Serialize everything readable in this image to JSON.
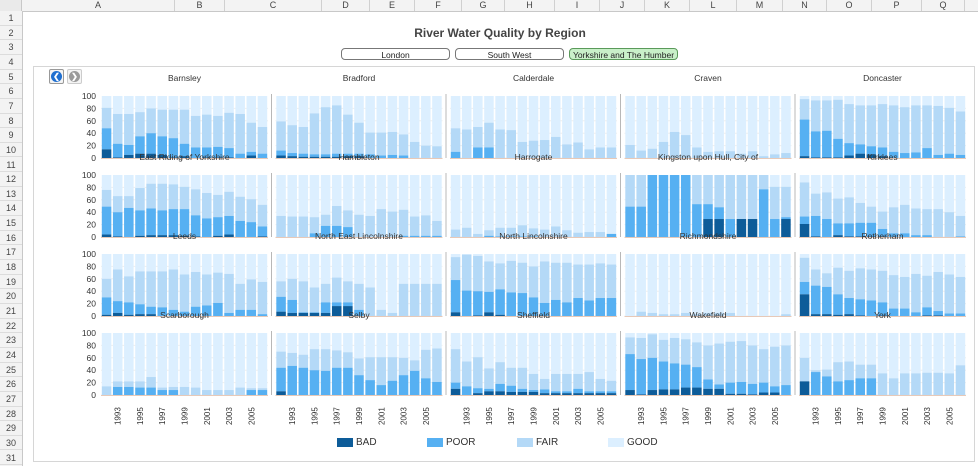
{
  "sheet": {
    "columns": [
      "A",
      "B",
      "C",
      "D",
      "E",
      "F",
      "G",
      "H",
      "I",
      "J",
      "K",
      "L",
      "M",
      "N",
      "O",
      "P",
      "Q"
    ],
    "rows": [
      1,
      2,
      3,
      4,
      5,
      6,
      7,
      8,
      9,
      10,
      11,
      12,
      13,
      14,
      15,
      16,
      17,
      18,
      19,
      20,
      21,
      22,
      23,
      24,
      25,
      26,
      27,
      28,
      29,
      30,
      31
    ]
  },
  "dashboard": {
    "title": "River Water Quality by Region",
    "region_buttons": [
      {
        "label": "London",
        "active": false
      },
      {
        "label": "South West",
        "active": false
      },
      {
        "label": "Yorkshire and The Humber",
        "active": true
      }
    ],
    "nav": {
      "back_icon": "arrow-left-circle-icon",
      "forward_icon": "arrow-right-circle-icon"
    }
  },
  "colors": {
    "BAD": "#0d5c99",
    "POOR": "#56b0f2",
    "FAIR": "#b4d9f7",
    "GOOD": "#dcefff"
  },
  "legend": [
    "BAD",
    "POOR",
    "FAIR",
    "GOOD"
  ],
  "chart_data": {
    "type": "bar",
    "stacked": true,
    "stack_order": [
      "BAD",
      "POOR",
      "FAIR",
      "GOOD"
    ],
    "value_encoding": "cumulative percent: bad = % BAD, bad_poor = % BAD+POOR, bad_poor_fair = % BAD+POOR+FAIR, GOOD = remainder to 100",
    "years": [
      1992,
      1993,
      1994,
      1995,
      1996,
      1997,
      1998,
      1999,
      2000,
      2001,
      2002,
      2003,
      2004,
      2005,
      2006
    ],
    "x_tick_labels": [
      "1993",
      "1995",
      "1997",
      "1999",
      "2001",
      "2003",
      "2005"
    ],
    "y_ticks": [
      "100",
      "80",
      "60",
      "40",
      "20",
      "0"
    ],
    "ylim": [
      0,
      100
    ],
    "panels": [
      {
        "name": "Barnsley",
        "bad": [
          14,
          1,
          5,
          7,
          7,
          5,
          1,
          3,
          0,
          1,
          1,
          1,
          0,
          4,
          0
        ],
        "bad_poor": [
          48,
          23,
          21,
          35,
          40,
          35,
          32,
          23,
          17,
          17,
          18,
          16,
          7,
          10,
          7
        ],
        "bad_poor_fair": [
          81,
          71,
          71,
          74,
          80,
          78,
          78,
          78,
          68,
          70,
          68,
          73,
          71,
          57,
          50
        ]
      },
      {
        "name": "Bradford",
        "bad": [
          4,
          3,
          2,
          2,
          2,
          2,
          3,
          3,
          0,
          0,
          0,
          0,
          0,
          0,
          0
        ],
        "bad_poor": [
          12,
          8,
          7,
          6,
          6,
          7,
          7,
          7,
          6,
          4,
          5,
          4,
          0,
          0,
          0
        ],
        "bad_poor_fair": [
          59,
          53,
          50,
          72,
          82,
          85,
          70,
          57,
          41,
          41,
          42,
          38,
          26,
          20,
          19
        ]
      },
      {
        "name": "Calderdale",
        "bad": [
          0,
          0,
          0,
          0,
          0,
          0,
          0,
          0,
          0,
          0,
          0,
          0,
          0,
          0,
          0
        ],
        "bad_poor": [
          10,
          0,
          17,
          17,
          0,
          0,
          0,
          0,
          0,
          0,
          0,
          0,
          0,
          0,
          0
        ],
        "bad_poor_fair": [
          48,
          46,
          50,
          57,
          46,
          45,
          26,
          28,
          29,
          34,
          22,
          25,
          14,
          17,
          17
        ]
      },
      {
        "name": "Craven",
        "bad": [
          0,
          0,
          0,
          0,
          0,
          0,
          0,
          0,
          0,
          0,
          0,
          0,
          0,
          0,
          0
        ],
        "bad_poor": [
          0,
          0,
          0,
          0,
          0,
          0,
          0,
          0,
          0,
          0,
          0,
          0,
          0,
          0,
          0
        ],
        "bad_poor_fair": [
          21,
          12,
          15,
          26,
          42,
          37,
          17,
          10,
          11,
          11,
          7,
          11,
          3,
          6,
          8
        ]
      },
      {
        "name": "Doncaster",
        "bad": [
          3,
          1,
          1,
          1,
          4,
          7,
          6,
          3,
          0,
          0,
          0,
          0,
          0,
          0,
          0
        ],
        "bad_poor": [
          62,
          43,
          44,
          31,
          24,
          22,
          19,
          17,
          10,
          8,
          9,
          16,
          5,
          7,
          5
        ],
        "bad_poor_fair": [
          95,
          93,
          93,
          94,
          87,
          85,
          85,
          87,
          85,
          82,
          85,
          85,
          84,
          81,
          75
        ]
      },
      {
        "name": "East Riding of Yorkshire",
        "bad": [
          4,
          1,
          0,
          2,
          3,
          3,
          3,
          2,
          1,
          0,
          2,
          4,
          0,
          0,
          1
        ],
        "bad_poor": [
          49,
          40,
          47,
          43,
          46,
          43,
          45,
          45,
          35,
          30,
          32,
          34,
          26,
          24,
          17
        ],
        "bad_poor_fair": [
          76,
          66,
          66,
          79,
          86,
          86,
          85,
          81,
          77,
          71,
          68,
          73,
          65,
          61,
          52
        ]
      },
      {
        "name": "Hambleton",
        "bad": [
          0,
          0,
          0,
          0,
          0,
          0,
          0,
          0,
          0,
          0,
          0,
          0,
          0,
          0,
          0
        ],
        "bad_poor": [
          0,
          0,
          0,
          6,
          18,
          18,
          16,
          0,
          0,
          0,
          0,
          2,
          2,
          2,
          2
        ],
        "bad_poor_fair": [
          34,
          33,
          33,
          32,
          36,
          50,
          43,
          36,
          34,
          45,
          41,
          44,
          33,
          35,
          26
        ]
      },
      {
        "name": "Harrogate",
        "bad": [
          0,
          0,
          0,
          0,
          0,
          0,
          0,
          0,
          0,
          0,
          0,
          0,
          0,
          0,
          0
        ],
        "bad_poor": [
          0,
          0,
          0,
          2,
          1,
          1,
          1,
          1,
          0,
          0,
          0,
          0,
          0,
          0,
          5
        ],
        "bad_poor_fair": [
          12,
          15,
          5,
          11,
          15,
          15,
          19,
          14,
          12,
          17,
          11,
          7,
          8,
          8,
          5
        ]
      },
      {
        "name": "Kingston upon Hull, City of",
        "bad": [
          0,
          0,
          0,
          0,
          0,
          0,
          0,
          29,
          29,
          0,
          29,
          29,
          0,
          0,
          29
        ],
        "bad_poor": [
          49,
          49,
          100,
          100,
          100,
          100,
          53,
          53,
          48,
          29,
          29,
          29,
          77,
          29,
          32
        ],
        "bad_poor_fair": [
          100,
          100,
          100,
          100,
          100,
          100,
          100,
          100,
          100,
          100,
          100,
          100,
          100,
          81,
          81
        ]
      },
      {
        "name": "Kirklees",
        "bad": [
          21,
          1,
          0,
          3,
          1,
          1,
          1,
          1,
          0,
          0,
          0,
          0,
          0,
          0,
          0
        ],
        "bad_poor": [
          33,
          34,
          29,
          22,
          22,
          23,
          23,
          13,
          6,
          6,
          3,
          3,
          0,
          0,
          1
        ],
        "bad_poor_fair": [
          88,
          70,
          72,
          62,
          64,
          55,
          49,
          41,
          48,
          52,
          46,
          45,
          45,
          40,
          34
        ]
      },
      {
        "name": "Leeds",
        "bad": [
          2,
          5,
          2,
          3,
          3,
          0,
          0,
          0,
          0,
          0,
          0,
          0,
          0,
          0,
          0
        ],
        "bad_poor": [
          30,
          24,
          22,
          19,
          15,
          14,
          10,
          7,
          15,
          17,
          21,
          5,
          10,
          10,
          3
        ],
        "bad_poor_fair": [
          60,
          75,
          64,
          72,
          72,
          72,
          75,
          67,
          71,
          67,
          70,
          68,
          52,
          59,
          55
        ]
      },
      {
        "name": "North East Lincolnshire",
        "bad": [
          7,
          5,
          5,
          5,
          5,
          16,
          16,
          0,
          0,
          0,
          0,
          0,
          0,
          0,
          0
        ],
        "bad_poor": [
          31,
          26,
          6,
          6,
          22,
          22,
          22,
          10,
          0,
          0,
          0,
          0,
          0,
          0,
          0
        ],
        "bad_poor_fair": [
          56,
          60,
          56,
          46,
          52,
          62,
          56,
          52,
          46,
          10,
          5,
          52,
          52,
          52,
          52
        ]
      },
      {
        "name": "North Lincolnshire",
        "bad": [
          6,
          0,
          1,
          6,
          2,
          0,
          0,
          0,
          0,
          0,
          0,
          0,
          0,
          0,
          0
        ],
        "bad_poor": [
          58,
          41,
          40,
          39,
          43,
          38,
          37,
          30,
          21,
          26,
          22,
          29,
          25,
          29,
          29
        ],
        "bad_poor_fair": [
          95,
          99,
          97,
          88,
          85,
          89,
          86,
          80,
          88,
          86,
          86,
          83,
          83,
          85,
          83
        ]
      },
      {
        "name": "Richmondshire",
        "bad": [
          0,
          0,
          0,
          0,
          0,
          0,
          0,
          0,
          0,
          0,
          0,
          0,
          0,
          0,
          0
        ],
        "bad_poor": [
          0,
          0,
          0,
          0,
          0,
          0,
          0,
          0,
          0,
          0,
          0,
          0,
          0,
          0,
          0
        ],
        "bad_poor_fair": [
          0,
          7,
          5,
          3,
          3,
          5,
          3,
          5,
          5,
          5,
          0,
          0,
          0,
          0,
          3
        ]
      },
      {
        "name": "Rotherham",
        "bad": [
          35,
          3,
          3,
          2,
          3,
          1,
          0,
          1,
          0,
          0,
          0,
          1,
          1,
          0,
          0
        ],
        "bad_poor": [
          55,
          49,
          47,
          35,
          29,
          27,
          25,
          22,
          12,
          12,
          6,
          14,
          8,
          4,
          4
        ],
        "bad_poor_fair": [
          94,
          75,
          69,
          78,
          73,
          77,
          75,
          73,
          66,
          63,
          68,
          65,
          71,
          67,
          63
        ]
      },
      {
        "name": "Scarborough",
        "bad": [
          0,
          0,
          0,
          0,
          0,
          0,
          0,
          0,
          0,
          0,
          0,
          0,
          0,
          0,
          0
        ],
        "bad_poor": [
          0,
          13,
          13,
          12,
          12,
          8,
          8,
          0,
          0,
          0,
          0,
          0,
          0,
          8,
          8
        ],
        "bad_poor_fair": [
          14,
          22,
          22,
          22,
          29,
          12,
          13,
          13,
          12,
          8,
          8,
          8,
          12,
          11,
          11
        ]
      },
      {
        "name": "Selby",
        "bad": [
          6,
          0,
          0,
          0,
          0,
          0,
          0,
          0,
          0,
          0,
          0,
          0,
          0,
          0,
          0
        ],
        "bad_poor": [
          44,
          47,
          44,
          40,
          39,
          44,
          44,
          32,
          24,
          16,
          23,
          32,
          39,
          27,
          21
        ],
        "bad_poor_fair": [
          70,
          68,
          65,
          74,
          74,
          72,
          69,
          59,
          61,
          61,
          61,
          60,
          56,
          73,
          75
        ]
      },
      {
        "name": "Sheffield",
        "bad": [
          10,
          0,
          3,
          6,
          6,
          5,
          5,
          5,
          3,
          3,
          3,
          3,
          3,
          3,
          3
        ],
        "bad_poor": [
          20,
          14,
          11,
          10,
          18,
          15,
          10,
          8,
          9,
          6,
          6,
          10,
          6,
          6,
          6
        ],
        "bad_poor_fair": [
          74,
          54,
          61,
          43,
          53,
          44,
          44,
          34,
          26,
          34,
          34,
          34,
          37,
          26,
          23
        ]
      },
      {
        "name": "Wakefield",
        "bad": [
          8,
          1,
          8,
          9,
          9,
          12,
          12,
          10,
          10,
          2,
          2,
          1,
          4,
          4,
          0
        ],
        "bad_poor": [
          66,
          58,
          60,
          54,
          51,
          49,
          45,
          25,
          17,
          20,
          21,
          18,
          20,
          14,
          16
        ],
        "bad_poor_fair": [
          93,
          92,
          98,
          89,
          92,
          90,
          85,
          80,
          83,
          86,
          87,
          80,
          74,
          78,
          80
        ]
      },
      {
        "name": "York",
        "bad": [
          22,
          0,
          0,
          0,
          0,
          0,
          0,
          0,
          0,
          0,
          0,
          0,
          0,
          0,
          0
        ],
        "bad_poor": [
          22,
          37,
          30,
          22,
          24,
          27,
          27,
          0,
          0,
          0,
          0,
          0,
          0,
          0,
          0
        ],
        "bad_poor_fair": [
          60,
          40,
          41,
          53,
          54,
          49,
          49,
          35,
          27,
          35,
          35,
          36,
          36,
          35,
          48
        ]
      }
    ]
  }
}
